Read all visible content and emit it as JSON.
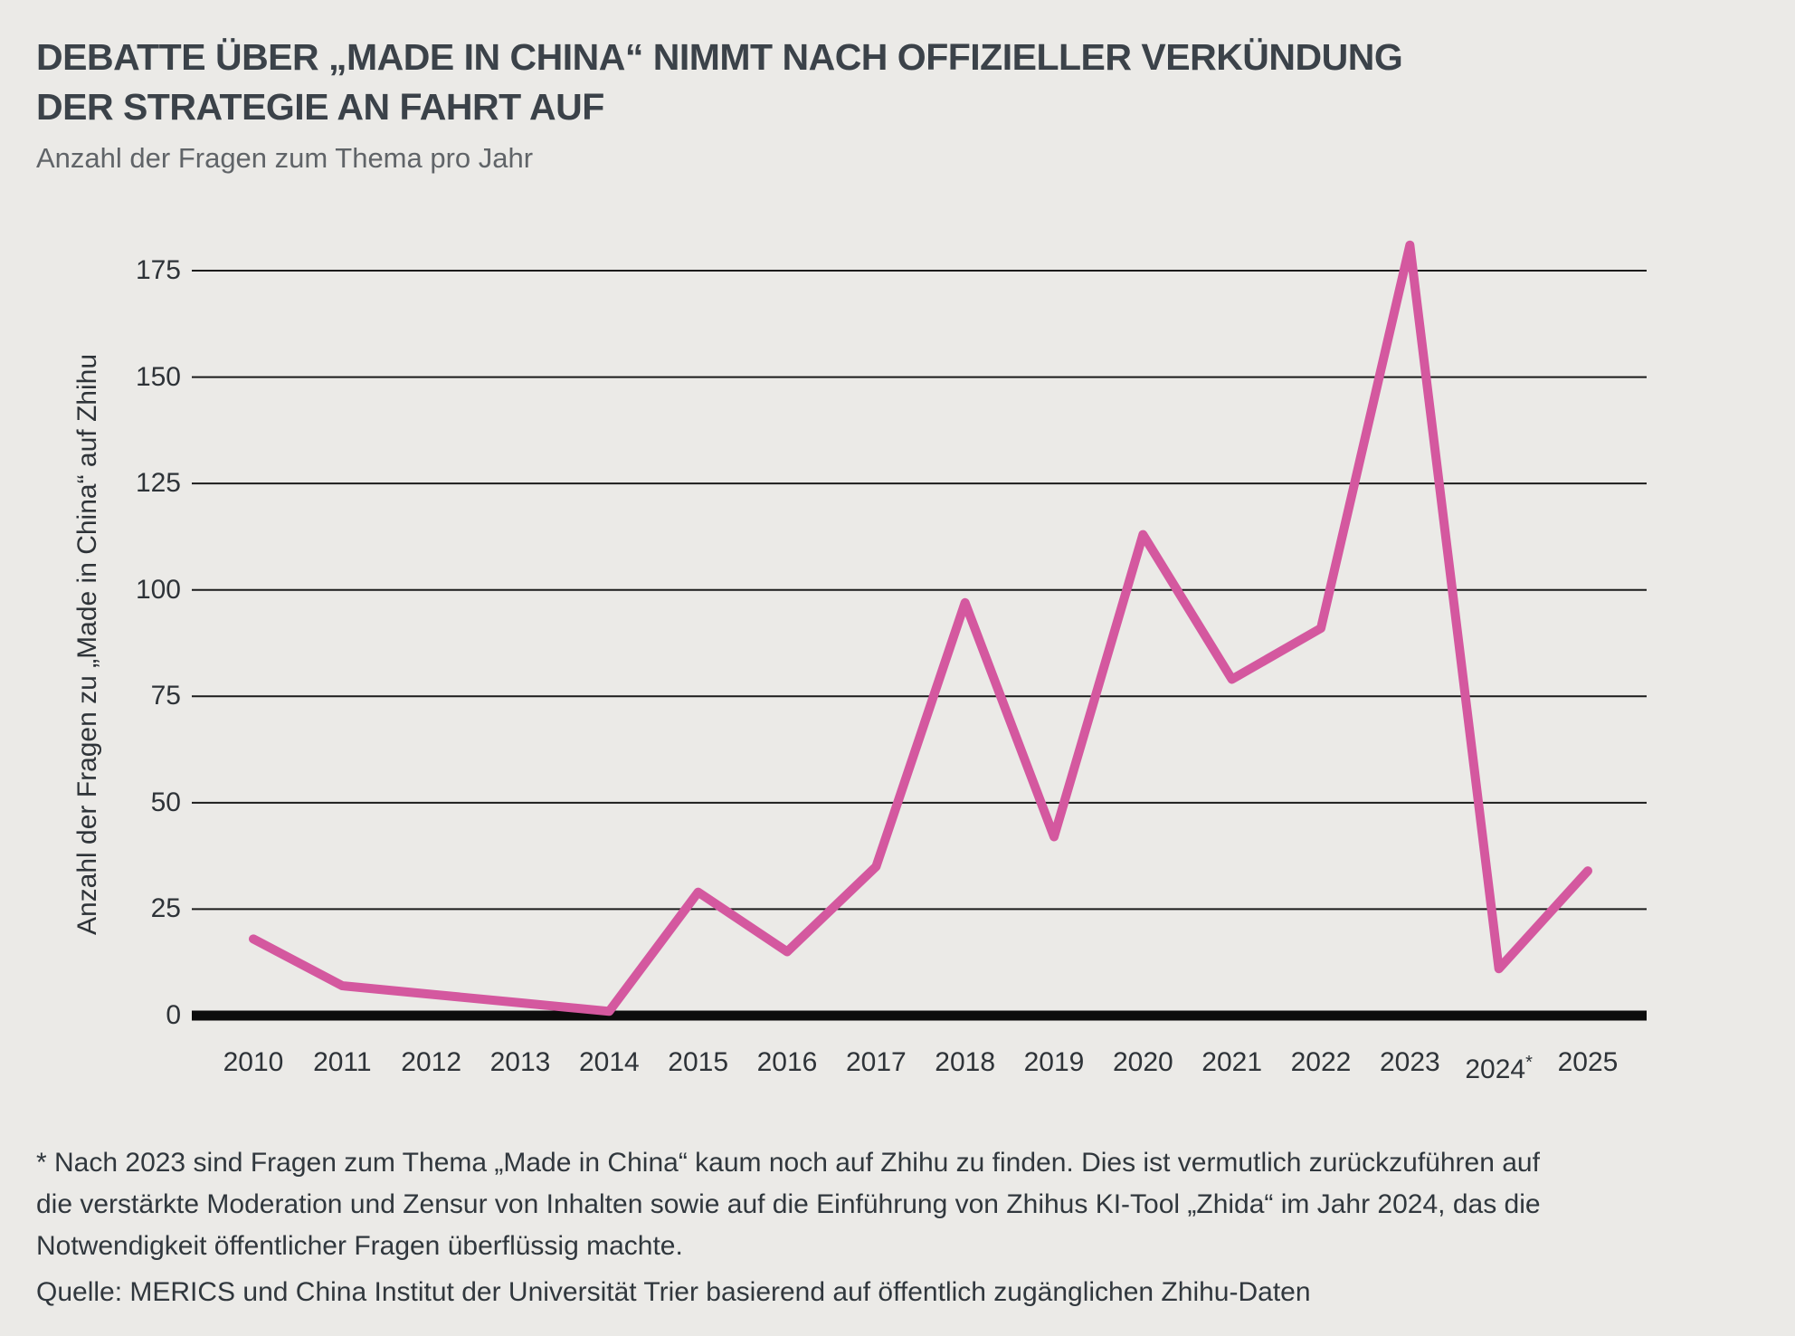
{
  "page": {
    "title_lines": [
      "DEBATTE ÜBER „MADE IN CHINA“ NIMMT NACH OFFIZIELLER VERKÜNDUNG",
      "DER STRATEGIE AN FAHRT AUF"
    ],
    "subtitle": "Anzahl der Fragen zum Thema pro Jahr",
    "footnote_lines": [
      "* Nach 2023 sind Fragen zum Thema „Made in China“ kaum noch auf Zhihu zu finden. Dies ist vermutlich zurückzuführen auf",
      "die verstärkte Moderation und Zensur von Inhalten sowie auf die Einführung von Zhihus KI-Tool „Zhida“ im Jahr 2024, das die",
      "Notwendigkeit öffentlicher Fragen überflüssig machte."
    ],
    "source": "Quelle: MERICS und China Institut der Universität Trier basierend auf öffentlich zugänglichen Zhihu-Daten"
  },
  "colors": {
    "background": "#ebeae7",
    "title": "#3b4249",
    "subtitle": "#606468",
    "axis_text": "#2e3338",
    "gridline": "#1b1b1b",
    "baseline": "#0c0c0c",
    "line": "#d4589f"
  },
  "chart_data": {
    "type": "line",
    "title": "DEBATTE ÜBER „MADE IN CHINA“ NIMMT NACH OFFIZIELLER VERKÜNDUNG DER STRATEGIE AN FAHRT AUF",
    "subtitle": "Anzahl der Fragen zum Thema pro Jahr",
    "categories": [
      "2010",
      "2011",
      "2012",
      "2013",
      "2014",
      "2015",
      "2016",
      "2017",
      "2018",
      "2019",
      "2020",
      "2021",
      "2022",
      "2023",
      "2024*",
      "2025"
    ],
    "values": [
      18,
      7,
      5,
      3,
      1,
      29,
      15,
      35,
      97,
      42,
      113,
      79,
      91,
      181,
      11,
      34
    ],
    "xlabel": "",
    "ylabel": "Anzahl der Fragen zu „Made in China“ auf Zhihu",
    "ylim": [
      0,
      185
    ],
    "yticks": [
      0,
      25,
      50,
      75,
      100,
      125,
      150,
      175
    ],
    "grid": "horizontal-only",
    "legend": "none",
    "line_color": "#d4589f"
  }
}
